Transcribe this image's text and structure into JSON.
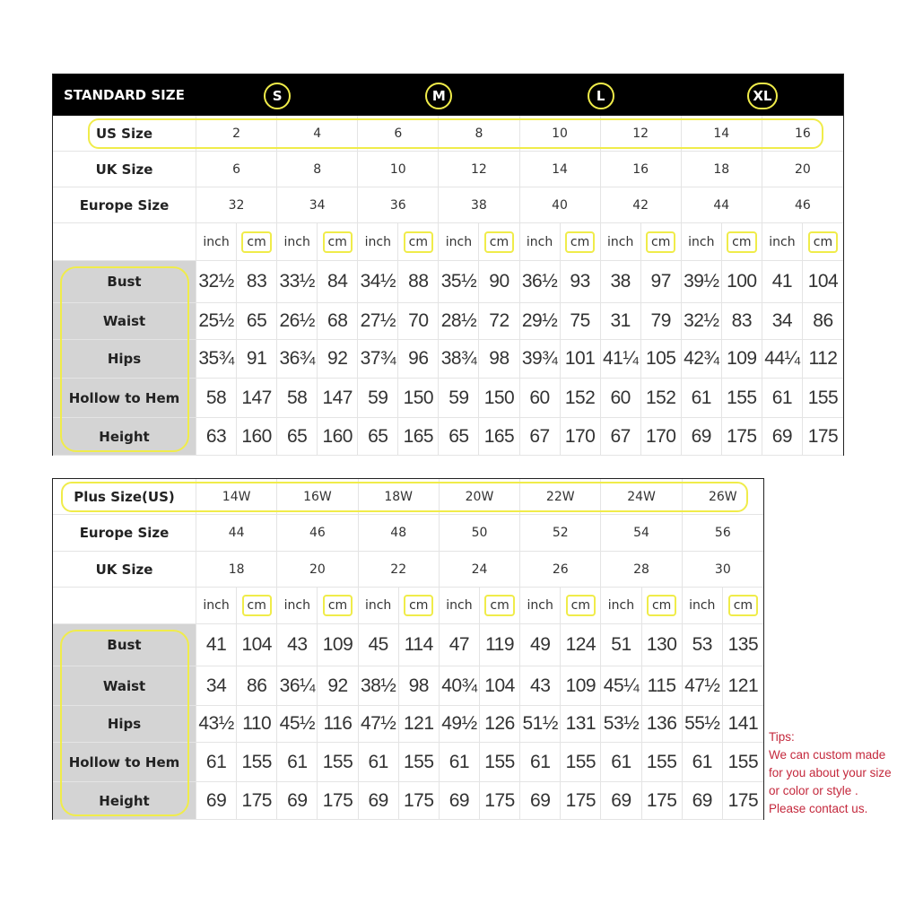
{
  "standard": {
    "title": "STANDARD SIZE",
    "groups": [
      "S",
      "M",
      "L",
      "XL"
    ],
    "size_rows": [
      {
        "label": "US Size",
        "values": [
          "2",
          "4",
          "6",
          "8",
          "10",
          "12",
          "14",
          "16"
        ]
      },
      {
        "label": "UK Size",
        "values": [
          "6",
          "8",
          "10",
          "12",
          "14",
          "16",
          "18",
          "20"
        ]
      },
      {
        "label": "Europe Size",
        "values": [
          "32",
          "34",
          "36",
          "38",
          "40",
          "42",
          "44",
          "46"
        ]
      }
    ],
    "units": [
      "inch",
      "cm"
    ],
    "measure_rows": [
      {
        "label": "Bust",
        "values": [
          "32½",
          "83",
          "33½",
          "84",
          "34½",
          "88",
          "35½",
          "90",
          "36½",
          "93",
          "38",
          "97",
          "39½",
          "100",
          "41",
          "104"
        ]
      },
      {
        "label": "Waist",
        "values": [
          "25½",
          "65",
          "26½",
          "68",
          "27½",
          "70",
          "28½",
          "72",
          "29½",
          "75",
          "31",
          "79",
          "32½",
          "83",
          "34",
          "86"
        ]
      },
      {
        "label": "Hips",
        "values": [
          "35¾",
          "91",
          "36¾",
          "92",
          "37¾",
          "96",
          "38¾",
          "98",
          "39¾",
          "101",
          "41¼",
          "105",
          "42¾",
          "109",
          "44¼",
          "112"
        ]
      },
      {
        "label": "Hollow to Hem",
        "values": [
          "58",
          "147",
          "58",
          "147",
          "59",
          "150",
          "59",
          "150",
          "60",
          "152",
          "60",
          "152",
          "61",
          "155",
          "61",
          "155"
        ]
      },
      {
        "label": "Height",
        "values": [
          "63",
          "160",
          "65",
          "160",
          "65",
          "165",
          "65",
          "165",
          "67",
          "170",
          "67",
          "170",
          "69",
          "175",
          "69",
          "175"
        ]
      }
    ]
  },
  "plus": {
    "size_rows": [
      {
        "label": "Plus Size(US)",
        "values": [
          "14W",
          "16W",
          "18W",
          "20W",
          "22W",
          "24W",
          "26W"
        ]
      },
      {
        "label": "Europe Size",
        "values": [
          "44",
          "46",
          "48",
          "50",
          "52",
          "54",
          "56"
        ]
      },
      {
        "label": "UK Size",
        "values": [
          "18",
          "20",
          "22",
          "24",
          "26",
          "28",
          "30"
        ]
      }
    ],
    "units": [
      "inch",
      "cm"
    ],
    "measure_rows": [
      {
        "label": "Bust",
        "values": [
          "41",
          "104",
          "43",
          "109",
          "45",
          "114",
          "47",
          "119",
          "49",
          "124",
          "51",
          "130",
          "53",
          "135"
        ]
      },
      {
        "label": "Waist",
        "values": [
          "34",
          "86",
          "36¼",
          "92",
          "38½",
          "98",
          "40¾",
          "104",
          "43",
          "109",
          "45¼",
          "115",
          "47½",
          "121"
        ]
      },
      {
        "label": "Hips",
        "values": [
          "43½",
          "110",
          "45½",
          "116",
          "47½",
          "121",
          "49½",
          "126",
          "51½",
          "131",
          "53½",
          "136",
          "55½",
          "141"
        ]
      },
      {
        "label": "Hollow to Hem",
        "values": [
          "61",
          "155",
          "61",
          "155",
          "61",
          "155",
          "61",
          "155",
          "61",
          "155",
          "61",
          "155",
          "61",
          "155"
        ]
      },
      {
        "label": "Height",
        "values": [
          "69",
          "175",
          "69",
          "175",
          "69",
          "175",
          "69",
          "175",
          "69",
          "175",
          "69",
          "175",
          "69",
          "175"
        ]
      }
    ]
  },
  "tips": {
    "title": "Tips:",
    "lines": [
      "We can custom made",
      "for you about your size",
      "or color or style .",
      "Please contact us."
    ]
  },
  "colors": {
    "highlight": "#f0ec4a",
    "tips": "#c4283c",
    "header": "#000000",
    "label_bg": "#d4d4d4"
  }
}
